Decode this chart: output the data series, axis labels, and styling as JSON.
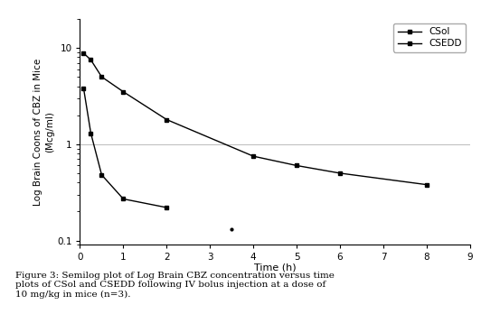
{
  "csol_x": [
    0.083,
    0.25,
    0.5,
    1.0,
    2.0,
    4.0,
    5.0,
    6.0,
    8.0
  ],
  "csol_y": [
    8.8,
    7.5,
    5.0,
    3.5,
    1.8,
    0.75,
    0.6,
    0.5,
    0.38
  ],
  "csedd_x": [
    0.083,
    0.25,
    0.5,
    1.0,
    2.0
  ],
  "csedd_y": [
    3.8,
    1.3,
    0.48,
    0.27,
    0.22
  ],
  "isolated_x": [
    3.5
  ],
  "isolated_y": [
    0.13
  ],
  "xlabel": "Time (h)",
  "ylabel": "Log Brain Coons of CBZ in Mice\n(Mcg/ml)",
  "xlim": [
    0,
    9
  ],
  "ylim": [
    0.09,
    20
  ],
  "xticks": [
    0,
    1,
    2,
    3,
    4,
    5,
    6,
    7,
    8,
    9
  ],
  "legend_labels": [
    "CSol",
    "CSEDD"
  ],
  "line_color": "#000000",
  "caption": "Figure 3: Semilog plot of Log Brain CBZ concentration versus time plots of CSol and CSEDD following IV bolus injection at a dose of 10 mg/kg in mice (n=3).",
  "bg_color": "#ffffff"
}
